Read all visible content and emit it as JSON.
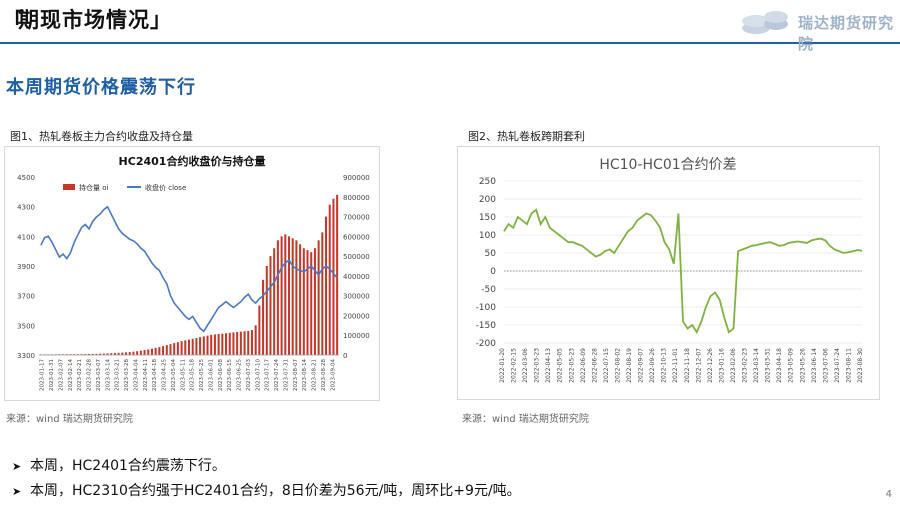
{
  "header": {
    "bracket": "「",
    "title": "期现市场情况」"
  },
  "logo": {
    "text": "瑞达期货研究院"
  },
  "section_title": "本周期货价格震荡下行",
  "figure1": {
    "caption": "图1、热轧卷板主力合约收盘及持仓量",
    "source": "来源：wind    瑞达期货研究院"
  },
  "figure2": {
    "caption": "图2、热轧卷板跨期套利",
    "source": "来源：wind    瑞达期货研究院"
  },
  "bullets": [
    "本周，HC2401合约震荡下行。",
    "本周，HC2310合约强于HC2401合约，8日价差为56元/吨，周环比+9元/吨。"
  ],
  "page_number": "4",
  "colors": {
    "accent": "#1e5fa6",
    "bar": "#c0392b",
    "line_blue": "#4a78c2",
    "line_green": "#7fb241"
  },
  "chart_data": [
    {
      "type": "bar+line",
      "title": "HC2401合约收盘价与持仓量",
      "legend": [
        "持仓量 oi",
        "收盘价 close"
      ],
      "legend_position": "top",
      "x_ticks": [
        "2023-01-17",
        "2023-01-31",
        "2023-02-07",
        "2023-02-14",
        "2023-02-21",
        "2023-02-28",
        "2023-03-07",
        "2023-03-14",
        "2023-03-21",
        "2023-03-28",
        "2023-04-04",
        "2023-04-11",
        "2023-04-18",
        "2023-04-25",
        "2023-05-04",
        "2023-05-11",
        "2023-05-18",
        "2023-05-25",
        "2023-06-01",
        "2023-06-08",
        "2023-06-15",
        "2023-06-25",
        "2023-07-03",
        "2023-07-10",
        "2023-07-17",
        "2023-07-24",
        "2023-07-31",
        "2023-08-07",
        "2023-08-14",
        "2023-08-21",
        "2023-08-28",
        "2023-09-04"
      ],
      "y_left": {
        "ticks": [
          "3300",
          "3500",
          "3700",
          "3900",
          "4100",
          "4300",
          "4500"
        ],
        "range": [
          3300,
          4500
        ]
      },
      "y_right": {
        "ticks": [
          "0",
          "100000",
          "200000",
          "300000",
          "400000",
          "500000",
          "600000",
          "700000",
          "800000",
          "900000"
        ],
        "range": [
          0,
          900000
        ]
      },
      "close": [
        4040,
        4090,
        4100,
        4060,
        4010,
        3960,
        3980,
        3950,
        3990,
        4060,
        4110,
        4160,
        4180,
        4150,
        4200,
        4230,
        4250,
        4280,
        4300,
        4250,
        4200,
        4150,
        4120,
        4100,
        4080,
        4070,
        4050,
        4020,
        4000,
        3960,
        3920,
        3890,
        3870,
        3820,
        3780,
        3700,
        3650,
        3620,
        3590,
        3560,
        3540,
        3560,
        3520,
        3480,
        3460,
        3500,
        3540,
        3580,
        3620,
        3640,
        3660,
        3640,
        3620,
        3640,
        3660,
        3690,
        3710,
        3670,
        3650,
        3680,
        3700,
        3730,
        3760,
        3790,
        3840,
        3890,
        3920,
        3940,
        3900,
        3880,
        3870,
        3860,
        3880,
        3900,
        3870,
        3840,
        3880,
        3900,
        3880,
        3850,
        3820
      ],
      "oi": [
        3000,
        3000,
        3100,
        3200,
        3300,
        3400,
        3500,
        3600,
        3700,
        3800,
        4000,
        4200,
        4500,
        5000,
        5500,
        6000,
        6500,
        7000,
        8000,
        9000,
        10000,
        11000,
        12000,
        13500,
        15000,
        17000,
        19000,
        22000,
        25000,
        28000,
        32000,
        36000,
        40000,
        45000,
        50000,
        55000,
        60000,
        65000,
        70000,
        74000,
        78000,
        82000,
        86000,
        90000,
        94000,
        98000,
        102000,
        104000,
        106000,
        108000,
        110000,
        112000,
        114000,
        116000,
        118000,
        120000,
        122000,
        126000,
        150000,
        250000,
        380000,
        450000,
        500000,
        540000,
        580000,
        600000,
        610000,
        600000,
        590000,
        580000,
        560000,
        540000,
        530000,
        520000,
        540000,
        580000,
        620000,
        700000,
        760000,
        790000,
        810000
      ]
    },
    {
      "type": "line",
      "title": "HC10-HC01合约价差",
      "x_ticks": [
        "2022-01-20",
        "2022-02-15",
        "2022-03-06",
        "2022-03-23",
        "2022-04-13",
        "2022-05-05",
        "2022-05-23",
        "2022-06-09",
        "2022-06-28",
        "2022-07-15",
        "2022-08-02",
        "2022-08-19",
        "2022-09-07",
        "2022-09-26",
        "2022-10-13",
        "2022-11-01",
        "2022-11-18",
        "2022-12-07",
        "2022-12-26",
        "2023-01-16",
        "2023-02-06",
        "2023-02-23",
        "2023-03-14",
        "2023-03-31",
        "2023-04-18",
        "2023-05-09",
        "2023-05-26",
        "2023-06-14",
        "2023-07-06",
        "2023-07-24",
        "2023-08-11",
        "2023-08-30"
      ],
      "y_ticks": [
        "-200",
        "-150",
        "-100",
        "-50",
        "0",
        "50",
        "100",
        "150",
        "200",
        "250"
      ],
      "ylim": [
        -200,
        250
      ],
      "values": [
        110,
        130,
        120,
        150,
        140,
        130,
        160,
        170,
        130,
        150,
        120,
        110,
        100,
        90,
        80,
        80,
        75,
        70,
        60,
        50,
        40,
        45,
        55,
        60,
        50,
        70,
        90,
        110,
        120,
        140,
        150,
        160,
        155,
        140,
        120,
        80,
        60,
        20,
        160,
        -140,
        -160,
        -150,
        -170,
        -140,
        -100,
        -70,
        -60,
        -80,
        -130,
        -170,
        -160,
        55,
        60,
        65,
        70,
        72,
        75,
        78,
        80,
        75,
        70,
        72,
        78,
        80,
        82,
        80,
        78,
        85,
        88,
        90,
        85,
        70,
        60,
        55,
        50,
        52,
        55,
        58,
        56
      ]
    }
  ]
}
